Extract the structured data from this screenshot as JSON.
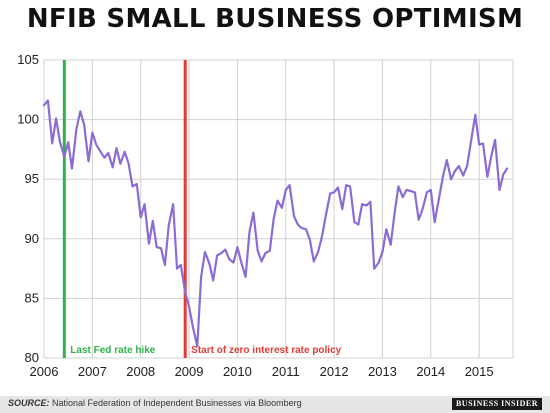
{
  "chart_data": {
    "type": "line",
    "title": "NFIB SMALL BUSINESS OPTIMISM",
    "xlabel": "",
    "ylabel": "",
    "xlim": [
      2006,
      2015.7
    ],
    "ylim": [
      80,
      105
    ],
    "x_ticks": [
      2006,
      2007,
      2008,
      2009,
      2010,
      2011,
      2012,
      2013,
      2014,
      2015
    ],
    "x_tick_labels": [
      "2006",
      "2007",
      "2008",
      "2009",
      "2010",
      "2011",
      "2012",
      "2013",
      "2014",
      "2015"
    ],
    "y_ticks": [
      80,
      85,
      90,
      95,
      100,
      105
    ],
    "y_tick_labels": [
      "80",
      "85",
      "90",
      "95",
      "100",
      "105"
    ],
    "grid": true,
    "series": [
      {
        "color": "#8b6bd6",
        "points": [
          [
            2006.0,
            101.2
          ],
          [
            2006.08,
            101.6
          ],
          [
            2006.17,
            98.0
          ],
          [
            2006.25,
            100.1
          ],
          [
            2006.33,
            98.1
          ],
          [
            2006.42,
            96.9
          ],
          [
            2006.5,
            98.1
          ],
          [
            2006.58,
            95.9
          ],
          [
            2006.67,
            99.2
          ],
          [
            2006.75,
            100.7
          ],
          [
            2006.83,
            99.6
          ],
          [
            2006.92,
            96.5
          ],
          [
            2007.0,
            98.9
          ],
          [
            2007.08,
            97.9
          ],
          [
            2007.17,
            97.3
          ],
          [
            2007.25,
            96.8
          ],
          [
            2007.33,
            97.2
          ],
          [
            2007.42,
            96.0
          ],
          [
            2007.5,
            97.6
          ],
          [
            2007.58,
            96.3
          ],
          [
            2007.67,
            97.3
          ],
          [
            2007.75,
            96.3
          ],
          [
            2007.83,
            94.4
          ],
          [
            2007.92,
            94.6
          ],
          [
            2008.0,
            91.8
          ],
          [
            2008.08,
            92.9
          ],
          [
            2008.17,
            89.6
          ],
          [
            2008.25,
            91.5
          ],
          [
            2008.33,
            89.3
          ],
          [
            2008.42,
            89.2
          ],
          [
            2008.5,
            87.8
          ],
          [
            2008.58,
            91.1
          ],
          [
            2008.67,
            92.9
          ],
          [
            2008.75,
            87.5
          ],
          [
            2008.83,
            87.8
          ],
          [
            2008.92,
            85.5
          ],
          [
            2009.0,
            84.3
          ],
          [
            2009.08,
            82.6
          ],
          [
            2009.17,
            81.0
          ],
          [
            2009.25,
            86.8
          ],
          [
            2009.33,
            88.9
          ],
          [
            2009.42,
            87.9
          ],
          [
            2009.5,
            86.5
          ],
          [
            2009.58,
            88.6
          ],
          [
            2009.67,
            88.8
          ],
          [
            2009.75,
            89.1
          ],
          [
            2009.83,
            88.3
          ],
          [
            2009.92,
            88.0
          ],
          [
            2010.0,
            89.3
          ],
          [
            2010.08,
            88.0
          ],
          [
            2010.17,
            86.8
          ],
          [
            2010.25,
            90.6
          ],
          [
            2010.33,
            92.2
          ],
          [
            2010.42,
            89.0
          ],
          [
            2010.5,
            88.1
          ],
          [
            2010.58,
            88.8
          ],
          [
            2010.67,
            89.0
          ],
          [
            2010.75,
            91.7
          ],
          [
            2010.83,
            93.2
          ],
          [
            2010.92,
            92.6
          ],
          [
            2011.0,
            94.1
          ],
          [
            2011.08,
            94.5
          ],
          [
            2011.17,
            91.9
          ],
          [
            2011.25,
            91.2
          ],
          [
            2011.33,
            90.9
          ],
          [
            2011.42,
            90.8
          ],
          [
            2011.5,
            89.9
          ],
          [
            2011.58,
            88.1
          ],
          [
            2011.67,
            88.9
          ],
          [
            2011.75,
            90.2
          ],
          [
            2011.83,
            92.0
          ],
          [
            2011.92,
            93.8
          ],
          [
            2012.0,
            93.9
          ],
          [
            2012.08,
            94.3
          ],
          [
            2012.17,
            92.5
          ],
          [
            2012.25,
            94.5
          ],
          [
            2012.33,
            94.4
          ],
          [
            2012.42,
            91.4
          ],
          [
            2012.5,
            91.2
          ],
          [
            2012.58,
            92.9
          ],
          [
            2012.67,
            92.8
          ],
          [
            2012.75,
            93.1
          ],
          [
            2012.83,
            87.5
          ],
          [
            2012.92,
            88.0
          ],
          [
            2013.0,
            88.9
          ],
          [
            2013.08,
            90.8
          ],
          [
            2013.17,
            89.5
          ],
          [
            2013.25,
            92.1
          ],
          [
            2013.33,
            94.4
          ],
          [
            2013.42,
            93.5
          ],
          [
            2013.5,
            94.1
          ],
          [
            2013.58,
            94.0
          ],
          [
            2013.67,
            93.9
          ],
          [
            2013.75,
            91.6
          ],
          [
            2013.83,
            92.5
          ],
          [
            2013.92,
            93.9
          ],
          [
            2014.0,
            94.1
          ],
          [
            2014.08,
            91.4
          ],
          [
            2014.17,
            93.4
          ],
          [
            2014.25,
            95.2
          ],
          [
            2014.33,
            96.6
          ],
          [
            2014.42,
            95.0
          ],
          [
            2014.5,
            95.7
          ],
          [
            2014.58,
            96.1
          ],
          [
            2014.67,
            95.3
          ],
          [
            2014.75,
            96.1
          ],
          [
            2014.83,
            98.1
          ],
          [
            2014.92,
            100.4
          ],
          [
            2015.0,
            97.9
          ],
          [
            2015.08,
            98.0
          ],
          [
            2015.17,
            95.2
          ],
          [
            2015.25,
            96.9
          ],
          [
            2015.33,
            98.3
          ],
          [
            2015.42,
            94.1
          ],
          [
            2015.5,
            95.4
          ],
          [
            2015.58,
            95.9
          ]
        ]
      }
    ],
    "annotations": [
      {
        "x": 2006.42,
        "label": "Last Fed rate hike",
        "color": "#2fb24c"
      },
      {
        "x": 2008.92,
        "label": "Start of zero interest rate policy",
        "color": "#e53a34"
      }
    ]
  },
  "footer": {
    "source_label": "SOURCE:",
    "source_text": " National Federation of Independent Businesses via Bloomberg",
    "brand": "BUSINESS INSIDER"
  }
}
